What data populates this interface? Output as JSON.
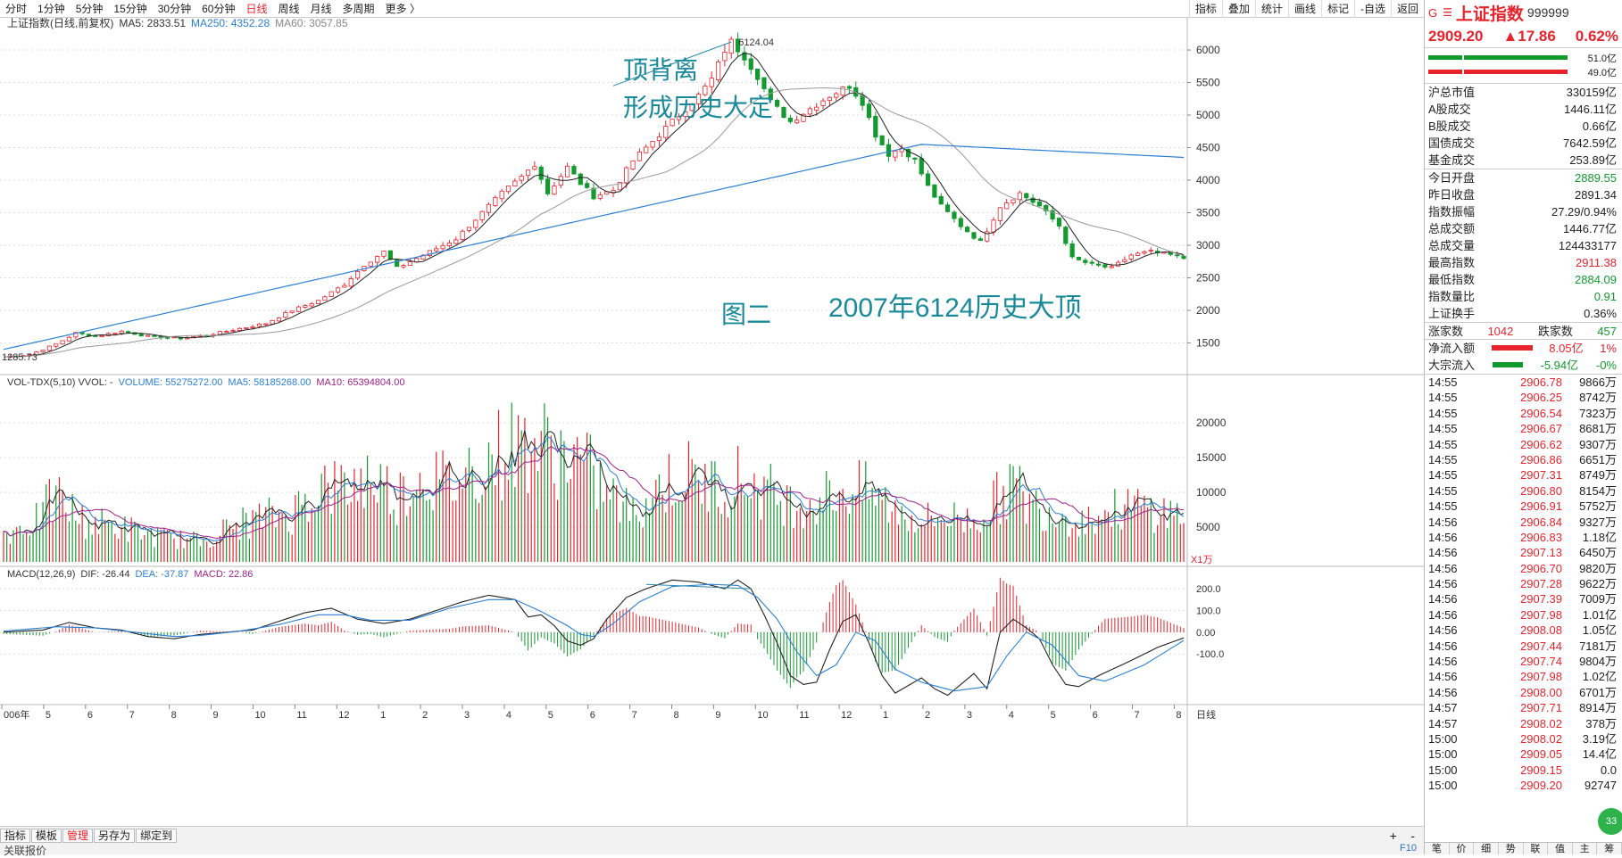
{
  "toolbar": {
    "periods": [
      "分时",
      "1分钟",
      "5分钟",
      "15分钟",
      "30分钟",
      "60分钟",
      "日线",
      "周线",
      "月线",
      "多周期",
      "更多 〉"
    ],
    "active_period": "日线",
    "right_buttons": [
      "指标",
      "叠加",
      "统计",
      "画线",
      "标记",
      "-自选",
      "返回"
    ]
  },
  "main_panel": {
    "legend_title": "上证指数(日线,前复权)",
    "ma5": "MA5: 2833.51",
    "ma250": "MA250: 4352.28",
    "ma60": "MA60: 3057.85",
    "peak_label": "6124.04",
    "low_label": "1285.73",
    "annotation1_line1": "顶背离",
    "annotation1_line2": "形成历史大定",
    "annotation2": "图二",
    "annotation3": "2007年6124历史大顶",
    "colors": {
      "up": "#e8232c",
      "down": "#139a2f",
      "ma5": "#222222",
      "ma60": "#999999",
      "ma250": "#2a7fd4",
      "annotation": "#1a8a9a"
    }
  },
  "vol_panel": {
    "title": "VOL-TDX(5,10) VVOL: -",
    "volume": "VOLUME: 55275272.00",
    "ma5": "MA5: 58185268.00",
    "ma10": "MA10: 65394804.00",
    "unit": "X1万"
  },
  "macd_panel": {
    "title": "MACD(12,26,9)",
    "dif": "DIF: -26.44",
    "dea": "DEA: -37.87",
    "macd": "MACD: 22.86"
  },
  "chart_data": {
    "type": "candlestick",
    "x_axis_labels": [
      "006年",
      "5",
      "6",
      "7",
      "8",
      "9",
      "10",
      "11",
      "12",
      "1",
      "2",
      "3",
      "4",
      "5",
      "6",
      "7",
      "8",
      "9",
      "10",
      "11",
      "12",
      "1",
      "2",
      "3",
      "4",
      "5",
      "6",
      "7",
      "8"
    ],
    "x_axis_right_label": "日线",
    "price_axis": {
      "ticks": [
        1500,
        2000,
        2500,
        3000,
        3500,
        4000,
        4500,
        5000,
        5500,
        6000
      ],
      "range": [
        1150,
        6220
      ]
    },
    "vol_axis": {
      "ticks": [
        5000,
        10000,
        15000,
        20000
      ],
      "range": [
        0,
        24000
      ]
    },
    "macd_axis": {
      "ticks": [
        200.0,
        100.0,
        0.0,
        -100.0
      ],
      "labels": [
        "200.0",
        "100.0",
        "0.00",
        "-100.0"
      ],
      "range": [
        -300,
        270
      ]
    },
    "close_path": [
      [
        0,
        1285
      ],
      [
        4,
        1320
      ],
      [
        8,
        1480
      ],
      [
        11,
        1650
      ],
      [
        14,
        1600
      ],
      [
        18,
        1680
      ],
      [
        22,
        1600
      ],
      [
        27,
        1570
      ],
      [
        31,
        1620
      ],
      [
        35,
        1700
      ],
      [
        40,
        1800
      ],
      [
        44,
        2000
      ],
      [
        48,
        2150
      ],
      [
        52,
        2400
      ],
      [
        55,
        2700
      ],
      [
        58,
        2900
      ],
      [
        60,
        2650
      ],
      [
        63,
        2800
      ],
      [
        66,
        2950
      ],
      [
        69,
        3100
      ],
      [
        73,
        3500
      ],
      [
        76,
        3800
      ],
      [
        79,
        4050
      ],
      [
        81,
        4250
      ],
      [
        83,
        3800
      ],
      [
        86,
        4200
      ],
      [
        88,
        3950
      ],
      [
        90,
        3750
      ],
      [
        93,
        3850
      ],
      [
        96,
        4300
      ],
      [
        100,
        4700
      ],
      [
        103,
        5000
      ],
      [
        106,
        5300
      ],
      [
        108,
        5550
      ],
      [
        110,
        6000
      ],
      [
        111,
        6124
      ],
      [
        113,
        5900
      ],
      [
        115,
        5600
      ],
      [
        117,
        5200
      ],
      [
        120,
        4900
      ],
      [
        123,
        5100
      ],
      [
        126,
        5300
      ],
      [
        129,
        5450
      ],
      [
        131,
        5200
      ],
      [
        133,
        4700
      ],
      [
        135,
        4400
      ],
      [
        137,
        4500
      ],
      [
        139,
        4300
      ],
      [
        141,
        3900
      ],
      [
        143,
        3600
      ],
      [
        146,
        3300
      ],
      [
        149,
        3050
      ],
      [
        152,
        3600
      ],
      [
        155,
        3800
      ],
      [
        158,
        3600
      ],
      [
        161,
        3300
      ],
      [
        163,
        2800
      ],
      [
        166,
        2700
      ],
      [
        169,
        2650
      ],
      [
        172,
        2850
      ],
      [
        175,
        2900
      ],
      [
        178,
        2850
      ],
      [
        180,
        2800
      ]
    ],
    "volume_path": [
      [
        0,
        4000
      ],
      [
        5,
        6000
      ],
      [
        8,
        9500
      ],
      [
        12,
        6000
      ],
      [
        18,
        5000
      ],
      [
        24,
        3500
      ],
      [
        30,
        3000
      ],
      [
        36,
        5500
      ],
      [
        40,
        6500
      ],
      [
        44,
        7000
      ],
      [
        48,
        11000
      ],
      [
        52,
        10500
      ],
      [
        56,
        12500
      ],
      [
        60,
        9500
      ],
      [
        64,
        13000
      ],
      [
        68,
        11000
      ],
      [
        72,
        14000
      ],
      [
        76,
        16000
      ],
      [
        80,
        17500
      ],
      [
        84,
        16000
      ],
      [
        88,
        14500
      ],
      [
        92,
        10000
      ],
      [
        96,
        7000
      ],
      [
        100,
        11000
      ],
      [
        104,
        12500
      ],
      [
        108,
        11000
      ],
      [
        112,
        12000
      ],
      [
        116,
        10500
      ],
      [
        120,
        8500
      ],
      [
        124,
        9000
      ],
      [
        128,
        10500
      ],
      [
        132,
        10000
      ],
      [
        136,
        7500
      ],
      [
        140,
        6000
      ],
      [
        144,
        6500
      ],
      [
        148,
        6000
      ],
      [
        150,
        7500
      ],
      [
        154,
        11500
      ],
      [
        156,
        8500
      ],
      [
        160,
        7500
      ],
      [
        164,
        6000
      ],
      [
        168,
        7000
      ],
      [
        172,
        8000
      ],
      [
        176,
        7500
      ],
      [
        180,
        6500
      ]
    ],
    "dif_path": [
      [
        0,
        0
      ],
      [
        6,
        10
      ],
      [
        10,
        45
      ],
      [
        14,
        20
      ],
      [
        18,
        10
      ],
      [
        22,
        -20
      ],
      [
        26,
        -30
      ],
      [
        30,
        -10
      ],
      [
        34,
        0
      ],
      [
        38,
        10
      ],
      [
        42,
        50
      ],
      [
        46,
        90
      ],
      [
        50,
        110
      ],
      [
        54,
        60
      ],
      [
        58,
        40
      ],
      [
        62,
        60
      ],
      [
        66,
        100
      ],
      [
        70,
        140
      ],
      [
        74,
        170
      ],
      [
        78,
        150
      ],
      [
        80,
        70
      ],
      [
        82,
        80
      ],
      [
        84,
        30
      ],
      [
        86,
        -40
      ],
      [
        88,
        -60
      ],
      [
        90,
        -30
      ],
      [
        92,
        60
      ],
      [
        95,
        160
      ],
      [
        98,
        200
      ],
      [
        102,
        240
      ],
      [
        106,
        230
      ],
      [
        110,
        200
      ],
      [
        112,
        240
      ],
      [
        114,
        200
      ],
      [
        116,
        80
      ],
      [
        118,
        -50
      ],
      [
        120,
        -200
      ],
      [
        122,
        -240
      ],
      [
        124,
        -230
      ],
      [
        126,
        -80
      ],
      [
        128,
        50
      ],
      [
        130,
        80
      ],
      [
        132,
        -50
      ],
      [
        134,
        -200
      ],
      [
        136,
        -280
      ],
      [
        140,
        -210
      ],
      [
        142,
        -260
      ],
      [
        144,
        -290
      ],
      [
        146,
        -240
      ],
      [
        148,
        -190
      ],
      [
        150,
        -260
      ],
      [
        152,
        0
      ],
      [
        154,
        60
      ],
      [
        156,
        20
      ],
      [
        158,
        -30
      ],
      [
        160,
        -150
      ],
      [
        162,
        -240
      ],
      [
        164,
        -250
      ],
      [
        167,
        -200
      ],
      [
        172,
        -130
      ],
      [
        176,
        -70
      ],
      [
        180,
        -26
      ]
    ],
    "dea_path": [
      [
        0,
        5
      ],
      [
        8,
        25
      ],
      [
        14,
        20
      ],
      [
        20,
        0
      ],
      [
        26,
        -20
      ],
      [
        30,
        -15
      ],
      [
        36,
        5
      ],
      [
        42,
        35
      ],
      [
        48,
        80
      ],
      [
        52,
        80
      ],
      [
        56,
        55
      ],
      [
        62,
        55
      ],
      [
        68,
        110
      ],
      [
        74,
        150
      ],
      [
        78,
        150
      ],
      [
        82,
        95
      ],
      [
        86,
        30
      ],
      [
        88,
        -10
      ],
      [
        90,
        -20
      ],
      [
        93,
        40
      ],
      [
        97,
        140
      ],
      [
        102,
        210
      ],
      [
        108,
        220
      ],
      [
        112,
        215
      ],
      [
        115,
        160
      ],
      [
        118,
        60
      ],
      [
        121,
        -90
      ],
      [
        124,
        -200
      ],
      [
        127,
        -150
      ],
      [
        130,
        0
      ],
      [
        133,
        -40
      ],
      [
        136,
        -170
      ],
      [
        140,
        -230
      ],
      [
        145,
        -270
      ],
      [
        150,
        -250
      ],
      [
        153,
        -110
      ],
      [
        156,
        0
      ],
      [
        160,
        -60
      ],
      [
        164,
        -200
      ],
      [
        168,
        -225
      ],
      [
        174,
        -150
      ],
      [
        180,
        -38
      ]
    ]
  },
  "sidebar": {
    "g": "G",
    "index_name": "上证指数",
    "code": "999999",
    "price": "2909.20",
    "change": "▲17.86",
    "pct": "0.62%",
    "bar_labels": [
      "51.0亿",
      "49.0亿"
    ],
    "stats": [
      {
        "k": "沪总市值",
        "v": "330159亿",
        "c": ""
      },
      {
        "k": "A股成交",
        "v": "1446.11亿",
        "c": ""
      },
      {
        "k": "B股成交",
        "v": "0.66亿",
        "c": ""
      },
      {
        "k": "国债成交",
        "v": "7642.59亿",
        "c": ""
      },
      {
        "k": "基金成交",
        "v": "253.89亿",
        "c": ""
      },
      {
        "k": "今日开盘",
        "v": "2889.55",
        "c": "green"
      },
      {
        "k": "昨日收盘",
        "v": "2891.34",
        "c": ""
      },
      {
        "k": "指数振幅",
        "v": "27.29/0.94%",
        "c": ""
      },
      {
        "k": "总成交额",
        "v": "1446.77亿",
        "c": ""
      },
      {
        "k": "总成交量",
        "v": "124433177",
        "c": ""
      },
      {
        "k": "最高指数",
        "v": "2911.38",
        "c": "red"
      },
      {
        "k": "最低指数",
        "v": "2884.09",
        "c": "green"
      },
      {
        "k": "指数量比",
        "v": "0.91",
        "c": "green"
      },
      {
        "k": "上证换手",
        "v": "0.36%",
        "c": ""
      }
    ],
    "zhang_label": "涨家数",
    "zhang_val": "1042",
    "die_label": "跌家数",
    "die_val": "457",
    "flow1_label": "净流入额",
    "flow1_val": "8.05亿",
    "flow1_pct": "1%",
    "flow2_label": "大宗流入",
    "flow2_val": "-5.94亿",
    "flow2_pct": "-0%",
    "ticks": [
      [
        "14:55",
        "2906.78",
        "9866万"
      ],
      [
        "14:55",
        "2906.25",
        "8742万"
      ],
      [
        "14:55",
        "2906.54",
        "7323万"
      ],
      [
        "14:55",
        "2906.67",
        "8681万"
      ],
      [
        "14:55",
        "2906.62",
        "9307万"
      ],
      [
        "14:55",
        "2906.86",
        "6651万"
      ],
      [
        "14:55",
        "2907.31",
        "8749万"
      ],
      [
        "14:55",
        "2906.80",
        "8154万"
      ],
      [
        "14:55",
        "2906.91",
        "5752万"
      ],
      [
        "14:56",
        "2906.84",
        "9327万"
      ],
      [
        "14:56",
        "2906.83",
        "1.18亿"
      ],
      [
        "14:56",
        "2907.13",
        "6450万"
      ],
      [
        "14:56",
        "2906.70",
        "9820万"
      ],
      [
        "14:56",
        "2907.28",
        "9622万"
      ],
      [
        "14:56",
        "2907.39",
        "7009万"
      ],
      [
        "14:56",
        "2907.98",
        "1.01亿"
      ],
      [
        "14:56",
        "2908.08",
        "1.05亿"
      ],
      [
        "14:56",
        "2907.44",
        "7181万"
      ],
      [
        "14:56",
        "2907.74",
        "9804万"
      ],
      [
        "14:56",
        "2907.98",
        "1.02亿"
      ],
      [
        "14:56",
        "2908.00",
        "6701万"
      ],
      [
        "14:57",
        "2907.71",
        "8914万"
      ],
      [
        "14:57",
        "2908.02",
        "378万"
      ],
      [
        "15:00",
        "2908.02",
        "3.19亿"
      ],
      [
        "15:00",
        "2909.05",
        "14.4亿"
      ],
      [
        "15:00",
        "2909.15",
        "0.0"
      ],
      [
        "15:00",
        "2909.20",
        "92747"
      ]
    ],
    "tabs": [
      "笔",
      "价",
      "细",
      "势",
      "联",
      "值",
      "主",
      "筹"
    ]
  },
  "bottom": {
    "tabs": [
      "指标",
      "模板",
      "管理",
      "另存为",
      "绑定到"
    ],
    "active_tab": "管理",
    "plus": "+",
    "minus": "-",
    "status_text": "关联报价",
    "f10": "F10",
    "badge": "33"
  }
}
